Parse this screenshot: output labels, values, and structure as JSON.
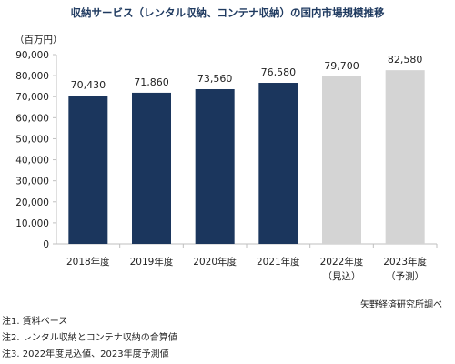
{
  "title": "収納サービス（レンタル収納、コンテナ収納）の国内市場規模推移",
  "unit_label": "（百万円）",
  "source": "矢野経済研究所調べ",
  "notes": [
    "注1. 賃料ベース",
    "注2. レンタル収納とコンテナ収納の合算値",
    "注3. 2022年度見込値、2023年度予測値"
  ],
  "colors": {
    "actual": "#1b365d",
    "forecast": "#d4d4d4",
    "axis": "#bfbfbf",
    "title": "#1f3a60"
  },
  "chart_data": {
    "type": "bar",
    "title": "収納サービス（レンタル収納、コンテナ収納）の国内市場規模推移",
    "ylabel": "（百万円）",
    "categories": [
      {
        "line1": "2018年度",
        "line2": ""
      },
      {
        "line1": "2019年度",
        "line2": ""
      },
      {
        "line1": "2020年度",
        "line2": ""
      },
      {
        "line1": "2021年度",
        "line2": ""
      },
      {
        "line1": "2022年度",
        "line2": "（見込）"
      },
      {
        "line1": "2023年度",
        "line2": "（予測）"
      }
    ],
    "values": [
      70430,
      71860,
      73560,
      76580,
      79700,
      82580
    ],
    "value_labels": [
      "70,430",
      "71,860",
      "73,560",
      "76,580",
      "79,700",
      "82,580"
    ],
    "bar_kind": [
      "actual",
      "actual",
      "actual",
      "actual",
      "forecast",
      "forecast"
    ],
    "ylim": [
      0,
      90000
    ],
    "yticks": [
      "0",
      "10,000",
      "20,000",
      "30,000",
      "40,000",
      "50,000",
      "60,000",
      "70,000",
      "80,000",
      "90,000"
    ],
    "grid": false,
    "legend": "none"
  }
}
